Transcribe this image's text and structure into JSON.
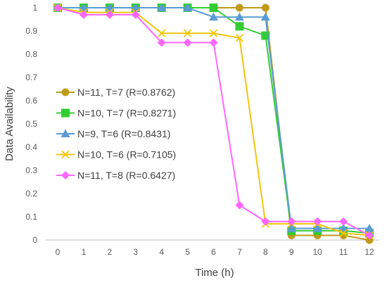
{
  "chart_data": {
    "type": "line",
    "xlabel": "Time (h)",
    "ylabel": "Data Availability",
    "x": [
      0,
      1,
      2,
      3,
      4,
      5,
      6,
      7,
      8,
      9,
      10,
      11,
      12
    ],
    "xlim": [
      0,
      12
    ],
    "ylim": [
      0,
      1
    ],
    "yticks": [
      "0",
      "0.1",
      "0.2",
      "0.3",
      "0.4",
      "0.5",
      "0.6",
      "0.7",
      "0.8",
      "0.9",
      "1"
    ],
    "xticks": [
      "0",
      "1",
      "2",
      "3",
      "4",
      "5",
      "6",
      "7",
      "8",
      "9",
      "10",
      "11",
      "12"
    ],
    "grid": false,
    "legend_position": "left",
    "series": [
      {
        "name": "N=11, T=7 (R=0.8762)",
        "color": "#c09a1a",
        "marker": "circle",
        "values": [
          1,
          1,
          1,
          1,
          1,
          1,
          1,
          1,
          1,
          0.02,
          0.02,
          0.02,
          0
        ]
      },
      {
        "name": "N=10, T=7 (R=0.8271)",
        "color": "#33cc33",
        "marker": "square",
        "values": [
          1,
          1,
          1,
          1,
          1,
          1,
          1,
          0.92,
          0.88,
          0.04,
          0.04,
          0.04,
          0.03
        ]
      },
      {
        "name": "N=9, T=6 (R=0.8431)",
        "color": "#5b9bd5",
        "marker": "triangle",
        "values": [
          1,
          1,
          1,
          1,
          1,
          1,
          0.96,
          0.96,
          0.96,
          0.05,
          0.05,
          0.05,
          0.05
        ]
      },
      {
        "name": "N=10, T=6 (R=0.7105)",
        "color": "#f2c40c",
        "marker": "x",
        "values": [
          1,
          0.98,
          0.98,
          0.98,
          0.89,
          0.89,
          0.89,
          0.87,
          0.07,
          0.07,
          0.07,
          0.03,
          0.02
        ]
      },
      {
        "name": "N=11, T=8 (R=0.6427)",
        "color": "#ff66ff",
        "marker": "diamond",
        "values": [
          1,
          0.97,
          0.97,
          0.97,
          0.85,
          0.85,
          0.85,
          0.15,
          0.08,
          0.08,
          0.08,
          0.08,
          0.02
        ]
      }
    ]
  }
}
